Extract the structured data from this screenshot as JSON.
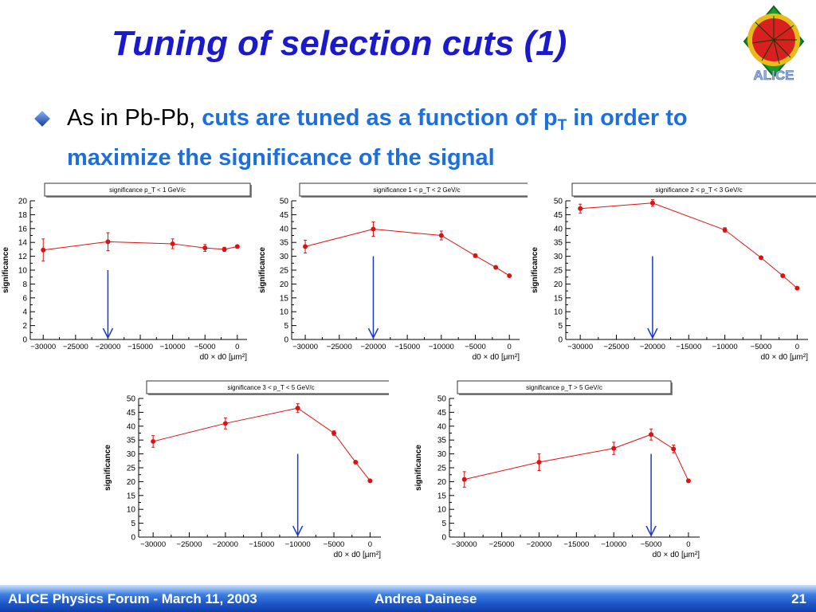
{
  "slide": {
    "title": "Tuning of selection cuts (1)",
    "bullet_prefix": "As in Pb-Pb, ",
    "bullet_hl_1": "cuts are tuned as a function of p",
    "bullet_hl_sub": "T",
    "bullet_hl_2": " in order to maximize the significance of the signal",
    "logo_label": "ALICE",
    "logo_icon": "alice-event-display-logo"
  },
  "footer": {
    "left": "ALICE Physics Forum - March 11, 2003",
    "center": "Andrea Dainese",
    "page": "21"
  },
  "colors": {
    "title": "#1a1acc",
    "highlight": "#1e6fd8",
    "marker": "#dd1111",
    "arrow": "#1a3acc"
  },
  "chart_data": [
    {
      "type": "scatter",
      "title": "significance  p_T < 1 GeV/c",
      "xlabel": "d0 × d0 [μm²]",
      "ylabel": "significance",
      "xlim": [
        -32000,
        1500
      ],
      "ylim": [
        0,
        20
      ],
      "yticks": [
        0,
        2,
        4,
        6,
        8,
        10,
        12,
        14,
        16,
        18,
        20
      ],
      "xticks": [
        -30000,
        -25000,
        -20000,
        -15000,
        -10000,
        -5000,
        0
      ],
      "series": [
        {
          "x": [
            -30000,
            -20000,
            -10000,
            -5000,
            -2000,
            0
          ],
          "y": [
            12.9,
            14.1,
            13.8,
            13.2,
            13.0,
            13.4
          ],
          "err": [
            1.6,
            1.3,
            0.7,
            0.5,
            0.3,
            0.2
          ]
        }
      ],
      "arrow_x": -20000,
      "arrow_top": 10
    },
    {
      "type": "scatter",
      "title": "significance  1 < p_T < 2 GeV/c",
      "xlabel": "d0 × d0 [μm²]",
      "ylabel": "significance",
      "xlim": [
        -32000,
        1500
      ],
      "ylim": [
        0,
        50
      ],
      "yticks": [
        0,
        5,
        10,
        15,
        20,
        25,
        30,
        35,
        40,
        45,
        50
      ],
      "xticks": [
        -30000,
        -25000,
        -20000,
        -15000,
        -10000,
        -5000,
        0
      ],
      "series": [
        {
          "x": [
            -30000,
            -20000,
            -10000,
            -5000,
            -2000,
            0
          ],
          "y": [
            33.5,
            39.8,
            37.5,
            30.2,
            26.0,
            23.0
          ],
          "err": [
            2.3,
            2.6,
            1.6,
            0.6,
            0.4,
            0.3
          ]
        }
      ],
      "arrow_x": -20000,
      "arrow_top": 30
    },
    {
      "type": "scatter",
      "title": "significance  2 < p_T < 3 GeV/c",
      "xlabel": "d0 × d0 [μm²]",
      "ylabel": "significance",
      "xlim": [
        -32000,
        1500
      ],
      "ylim": [
        0,
        50
      ],
      "yticks": [
        0,
        5,
        10,
        15,
        20,
        25,
        30,
        35,
        40,
        45,
        50
      ],
      "xticks": [
        -30000,
        -25000,
        -20000,
        -15000,
        -10000,
        -5000,
        0
      ],
      "series": [
        {
          "x": [
            -30000,
            -20000,
            -10000,
            -5000,
            -2000,
            0
          ],
          "y": [
            47.2,
            49.2,
            39.5,
            29.5,
            23.0,
            18.5
          ],
          "err": [
            1.6,
            1.2,
            0.8,
            0.4,
            0.3,
            0.3
          ]
        }
      ],
      "arrow_x": -20000,
      "arrow_top": 30
    },
    {
      "type": "scatter",
      "title": "significance  3 < p_T < 5 GeV/c",
      "xlabel": "d0 × d0 [μm²]",
      "ylabel": "significance",
      "xlim": [
        -32000,
        1500
      ],
      "ylim": [
        0,
        50
      ],
      "yticks": [
        0,
        5,
        10,
        15,
        20,
        25,
        30,
        35,
        40,
        45,
        50
      ],
      "xticks": [
        -30000,
        -25000,
        -20000,
        -15000,
        -10000,
        -5000,
        0
      ],
      "series": [
        {
          "x": [
            -30000,
            -20000,
            -10000,
            -5000,
            -2000,
            0
          ],
          "y": [
            34.5,
            41.0,
            46.5,
            37.5,
            27.0,
            20.3
          ],
          "err": [
            2.1,
            2.0,
            1.6,
            0.8,
            0.4,
            0.3
          ]
        }
      ],
      "arrow_x": -10000,
      "arrow_top": 30
    },
    {
      "type": "scatter",
      "title": "significance  p_T > 5 GeV/c",
      "xlabel": "d0 × d0 [μm²]",
      "ylabel": "significance",
      "xlim": [
        -32000,
        1500
      ],
      "ylim": [
        0,
        50
      ],
      "yticks": [
        0,
        5,
        10,
        15,
        20,
        25,
        30,
        35,
        40,
        45,
        50
      ],
      "xticks": [
        -30000,
        -25000,
        -20000,
        -15000,
        -10000,
        -5000,
        0
      ],
      "series": [
        {
          "x": [
            -30000,
            -20000,
            -10000,
            -5000,
            -2000,
            0
          ],
          "y": [
            20.8,
            27.0,
            32.0,
            37.0,
            31.8,
            20.3
          ],
          "err": [
            2.8,
            3.0,
            2.2,
            2.0,
            1.4,
            0.4
          ]
        }
      ],
      "arrow_x": -5000,
      "arrow_top": 30
    }
  ]
}
